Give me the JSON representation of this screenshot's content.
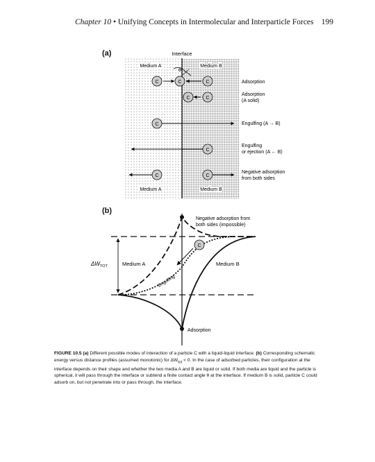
{
  "header": {
    "chapter": "Chapter 10",
    "title": "Unifying Concepts in Intermolecular and Interparticle Forces",
    "page_number": "199"
  },
  "panel_a": {
    "label": "(a)",
    "interface_label": "Interface",
    "theta_symbol": "θ",
    "medium_a_top": "Medium A",
    "medium_b_top": "Medium B",
    "medium_a_bottom": "Medium A",
    "medium_b_bottom": "Medium B",
    "particle_label": "C",
    "row_labels": {
      "adsorption": "Adsorption",
      "adsorption_solid_1": "Adsorption",
      "adsorption_solid_2": "(A solid)",
      "engulfing": "Engulfing (A → B)",
      "engulfing_ejection_1": "Engulfing",
      "engulfing_ejection_2": "or ejection (A ← B)",
      "negative_1": "Negative adsorption",
      "negative_2": "from both sides"
    }
  },
  "panel_b": {
    "label": "(b)",
    "negative_adsorption_1": "Negative adsorption from",
    "negative_adsorption_2": "both sides (impossible)",
    "particle_label": "C",
    "delta_w": "ΔW",
    "delta_w_sub": "TOT",
    "medium_a": "Medium A",
    "medium_b": "Medium B",
    "engulfing": "Engulfing",
    "adsorption": "Adsorption"
  },
  "caption": {
    "figure_label": "FIGURE 10.5",
    "panel_a_ref": "(a)",
    "text_1": "Different possible modes of interaction of a particle C with a liquid-liquid interface.",
    "panel_b_ref": "(b)",
    "text_2": "Corresponding schematic energy versus distance profiles (assumed monotonic) for ΔW",
    "text_2_sub": "tot",
    "text_3": "< 0. In the case of adsorbed particles, their configuration at the interface depends on their shape and whether the two media A and B are liquid or solid. If both media are liquid and the particle is spherical, it will pass through the interface or subtend a finite contact angle θ at the interface. If medium B is solid, particle C could adsorb on, but not penetrate into or pass through, the interface."
  }
}
